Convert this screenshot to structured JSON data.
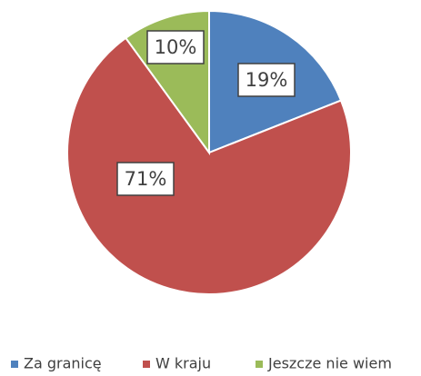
{
  "chart_data": {
    "type": "pie",
    "categories": [
      "Za granicę",
      "W kraju",
      "Jeszcze nie wiem"
    ],
    "values": [
      19,
      71,
      10
    ],
    "value_labels": [
      "19%",
      "71%",
      "10%"
    ],
    "colors": [
      "#4f81bd",
      "#c0504d",
      "#9bbb59"
    ],
    "legend": "bottom"
  }
}
